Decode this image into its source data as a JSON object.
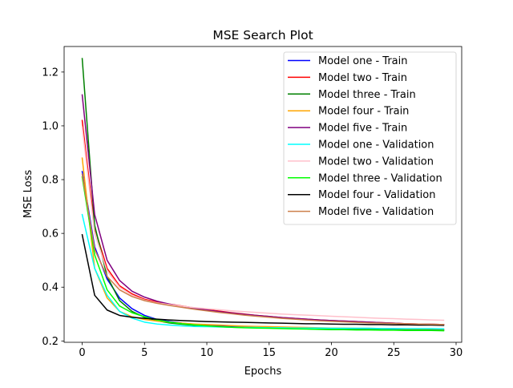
{
  "chart_data": {
    "type": "line",
    "title": "MSE Search Plot",
    "xlabel": "Epochs",
    "ylabel": "MSE Loss",
    "xlim": [
      -1.45,
      30.45
    ],
    "ylim": [
      0.195,
      1.295
    ],
    "xticks": [
      0,
      5,
      10,
      15,
      20,
      25,
      30
    ],
    "xtick_labels": [
      "0",
      "5",
      "10",
      "15",
      "20",
      "25",
      "30"
    ],
    "yticks": [
      0.2,
      0.4,
      0.6,
      0.8,
      1.0,
      1.2
    ],
    "ytick_labels": [
      "0.2",
      "0.4",
      "0.6",
      "0.8",
      "1.0",
      "1.2"
    ],
    "grid": false,
    "legend_position": "upper right",
    "x": [
      0,
      1,
      2,
      3,
      4,
      5,
      6,
      7,
      8,
      9,
      10,
      11,
      12,
      13,
      14,
      15,
      16,
      17,
      18,
      19,
      20,
      21,
      22,
      23,
      24,
      25,
      26,
      27,
      28,
      29
    ],
    "series": [
      {
        "name": "Model one - Train",
        "color": "#0000ff",
        "values": [
          0.83,
          0.55,
          0.43,
          0.36,
          0.32,
          0.295,
          0.28,
          0.272,
          0.266,
          0.262,
          0.258,
          0.256,
          0.254,
          0.252,
          0.25,
          0.249,
          0.248,
          0.247,
          0.246,
          0.245,
          0.245,
          0.244,
          0.244,
          0.243,
          0.243,
          0.242,
          0.242,
          0.242,
          0.241,
          0.241
        ]
      },
      {
        "name": "Model two - Train",
        "color": "#ff0000",
        "values": [
          1.02,
          0.62,
          0.47,
          0.405,
          0.375,
          0.355,
          0.345,
          0.337,
          0.33,
          0.323,
          0.317,
          0.311,
          0.305,
          0.3,
          0.295,
          0.291,
          0.287,
          0.284,
          0.281,
          0.278,
          0.276,
          0.274,
          0.272,
          0.27,
          0.268,
          0.266,
          0.264,
          0.263,
          0.262,
          0.261
        ]
      },
      {
        "name": "Model three - Train",
        "color": "#008000",
        "values": [
          1.25,
          0.63,
          0.44,
          0.35,
          0.31,
          0.288,
          0.275,
          0.267,
          0.262,
          0.258,
          0.255,
          0.253,
          0.251,
          0.25,
          0.249,
          0.248,
          0.247,
          0.246,
          0.245,
          0.244,
          0.244,
          0.243,
          0.243,
          0.242,
          0.242,
          0.241,
          0.241,
          0.241,
          0.24,
          0.24
        ]
      },
      {
        "name": "Model four - Train",
        "color": "#ffa500",
        "values": [
          0.88,
          0.47,
          0.36,
          0.31,
          0.29,
          0.28,
          0.274,
          0.27,
          0.266,
          0.263,
          0.261,
          0.259,
          0.257,
          0.255,
          0.254,
          0.253,
          0.252,
          0.251,
          0.25,
          0.249,
          0.248,
          0.248,
          0.247,
          0.247,
          0.246,
          0.246,
          0.245,
          0.245,
          0.245,
          0.244
        ]
      },
      {
        "name": "Model five - Train",
        "color": "#800080",
        "values": [
          1.115,
          0.67,
          0.5,
          0.425,
          0.385,
          0.363,
          0.348,
          0.337,
          0.328,
          0.321,
          0.315,
          0.309,
          0.304,
          0.299,
          0.295,
          0.291,
          0.287,
          0.284,
          0.281,
          0.278,
          0.276,
          0.274,
          0.272,
          0.27,
          0.268,
          0.266,
          0.264,
          0.263,
          0.262,
          0.261
        ]
      },
      {
        "name": "Model one - Validation",
        "color": "#00ffff",
        "values": [
          0.67,
          0.47,
          0.37,
          0.31,
          0.285,
          0.27,
          0.263,
          0.259,
          0.256,
          0.254,
          0.253,
          0.252,
          0.251,
          0.25,
          0.25,
          0.249,
          0.249,
          0.248,
          0.248,
          0.248,
          0.247,
          0.247,
          0.247,
          0.247,
          0.246,
          0.246,
          0.246,
          0.246,
          0.246,
          0.245
        ]
      },
      {
        "name": "Model two - Validation",
        "color": "#ffc0cb",
        "values": [
          0.995,
          0.6,
          0.46,
          0.4,
          0.37,
          0.352,
          0.342,
          0.335,
          0.329,
          0.324,
          0.32,
          0.316,
          0.312,
          0.309,
          0.306,
          0.303,
          0.3,
          0.298,
          0.296,
          0.294,
          0.292,
          0.29,
          0.288,
          0.286,
          0.284,
          0.283,
          0.281,
          0.28,
          0.278,
          0.277
        ]
      },
      {
        "name": "Model three - Validation",
        "color": "#00ff00",
        "values": [
          0.81,
          0.52,
          0.39,
          0.33,
          0.305,
          0.29,
          0.278,
          0.27,
          0.264,
          0.26,
          0.256,
          0.253,
          0.251,
          0.249,
          0.248,
          0.247,
          0.246,
          0.245,
          0.244,
          0.243,
          0.242,
          0.242,
          0.241,
          0.241,
          0.24,
          0.24,
          0.239,
          0.239,
          0.239,
          0.238
        ]
      },
      {
        "name": "Model four - Validation",
        "color": "#000000",
        "values": [
          0.595,
          0.37,
          0.315,
          0.295,
          0.288,
          0.284,
          0.281,
          0.278,
          0.276,
          0.274,
          0.272,
          0.271,
          0.27,
          0.269,
          0.268,
          0.267,
          0.266,
          0.265,
          0.264,
          0.264,
          0.263,
          0.262,
          0.262,
          0.261,
          0.261,
          0.26,
          0.26,
          0.259,
          0.259,
          0.258
        ]
      },
      {
        "name": "Model five - Validation",
        "color": "#cd7f4a",
        "values": [
          0.82,
          0.54,
          0.44,
          0.39,
          0.365,
          0.35,
          0.34,
          0.332,
          0.325,
          0.318,
          0.312,
          0.306,
          0.301,
          0.296,
          0.292,
          0.288,
          0.284,
          0.281,
          0.278,
          0.275,
          0.273,
          0.271,
          0.269,
          0.267,
          0.266,
          0.265,
          0.264,
          0.263,
          0.262,
          0.261
        ]
      }
    ]
  }
}
